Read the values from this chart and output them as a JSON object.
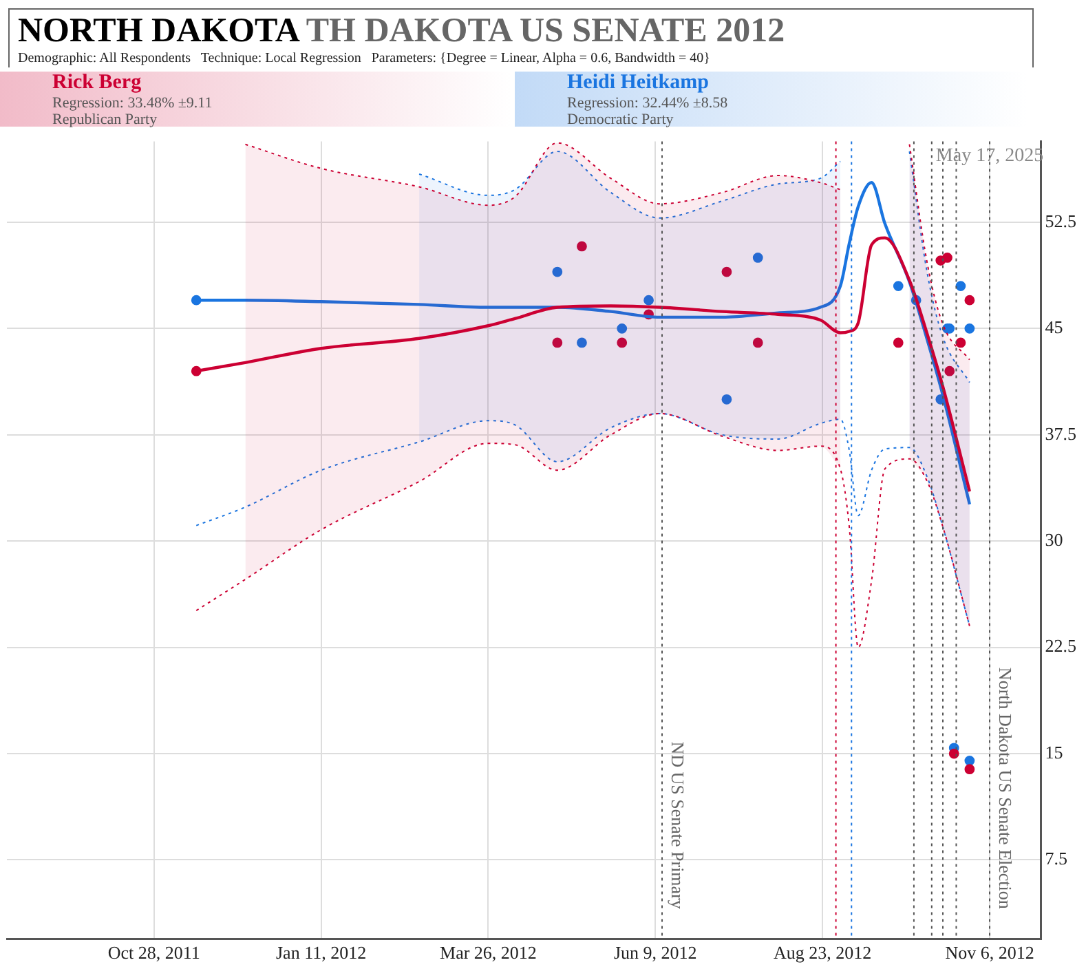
{
  "chart_data": {
    "type": "line",
    "title": "NORTH DAKOTA",
    "subtitle": "TH DAKOTA US SENATE 2012",
    "annotations": [
      "Demographic: All Respondents   Technique: Local Regression   Parameters: {Degree = Linear, Alpha = 0.6, Bandwidth = 40}",
      "Regression: 33.48% ±9.11",
      "Republican Party",
      "Regression: 32.44% ±8.58",
      "Democratic Party",
      {
        "text": "May 17, 2025",
        "x": "2012-11-06",
        "y": 57.2
      }
    ],
    "xlim": [
      "2011-08-23",
      "2012-11-29"
    ],
    "xticks": [
      {
        "value": "2011-10-28",
        "label": "Oct 28, 2011"
      },
      {
        "value": "2012-01-11",
        "label": "Jan 11, 2012"
      },
      {
        "value": "2012-03-26",
        "label": "Mar 26, 2012"
      },
      {
        "value": "2012-06-09",
        "label": "Jun 9, 2012"
      },
      {
        "value": "2012-08-23",
        "label": "Aug 23, 2012"
      },
      {
        "value": "2012-11-06",
        "label": "Nov 6, 2012"
      }
    ],
    "ylim": [
      1.9,
      58.2
    ],
    "yticks": [
      7.5,
      15,
      22.5,
      30,
      37.5,
      45,
      52.5
    ],
    "grid": true,
    "legend": "top",
    "series": [
      {
        "name": "Rick Berg",
        "color": "#cc0033",
        "x": [
          "2011-11-16",
          "2011-12-08",
          "2012-01-11",
          "2012-02-24",
          "2012-03-26",
          "2012-04-07",
          "2012-04-26",
          "2012-05-20",
          "2012-06-11",
          "2012-07-09",
          "2012-08-03",
          "2012-08-22",
          "2012-08-31",
          "2012-09-04",
          "2012-09-08",
          "2012-09-14",
          "2012-09-20",
          "2012-10-01",
          "2012-10-09",
          "2012-10-16",
          "2012-10-28"
        ],
        "values": [
          42.0,
          42.6,
          43.6,
          44.3,
          45.2,
          45.7,
          46.5,
          46.6,
          46.5,
          46.2,
          46.0,
          45.6,
          44.7,
          44.8,
          45.4,
          50.9,
          51.4,
          48.4,
          44.6,
          40.9,
          33.5
        ],
        "upper": [
          null,
          58.0,
          56.3,
          55.0,
          53.7,
          54.3,
          58.1,
          55.6,
          53.8,
          54.6,
          55.8,
          55.3,
          54.8,
          null,
          null,
          null,
          null,
          58.0,
          49.6,
          45.3,
          42.8
        ],
        "lower": [
          null,
          27.3,
          30.8,
          34.2,
          36.9,
          36.8,
          35.0,
          37.5,
          39.0,
          37.4,
          36.4,
          36.7,
          35.1,
          null,
          null,
          null,
          null,
          35.8,
          34.2,
          31.0,
          24.0
        ]
      },
      {
        "color": "#cc0033",
        "line_style": "dotted",
        "x": [
          "2011-12-08",
          "2012-01-11",
          "2012-02-24",
          "2012-03-26",
          "2012-04-07",
          "2012-04-26",
          "2012-05-20",
          "2012-06-11",
          "2012-07-09",
          "2012-08-03",
          "2012-08-22",
          "2012-08-31",
          "2012-09-04",
          "2012-09-08",
          "2012-09-14",
          "2012-09-20",
          "2012-10-01",
          "2012-10-09",
          "2012-10-16",
          "2012-10-28"
        ],
        "values": [
          58.0,
          56.3,
          55.0,
          53.7,
          54.3,
          58.1,
          55.6,
          53.8,
          54.6,
          55.8,
          55.3,
          54.8,
          null,
          null,
          null,
          null,
          58.0,
          49.6,
          45.3,
          42.8
        ]
      },
      {
        "color": "#cc0033",
        "line_style": "dotted",
        "x": [
          "2011-11-16",
          "2011-12-08",
          "2012-01-11",
          "2012-02-24",
          "2012-03-26",
          "2012-04-07",
          "2012-04-26",
          "2012-05-20",
          "2012-06-11",
          "2012-07-09",
          "2012-08-03",
          "2012-08-22",
          "2012-08-31",
          "2012-09-04",
          "2012-09-08",
          "2012-09-14",
          "2012-09-20",
          "2012-10-01",
          "2012-10-09",
          "2012-10-16",
          "2012-10-28"
        ],
        "values": [
          25.1,
          27.3,
          30.8,
          34.2,
          36.9,
          36.8,
          35.0,
          37.5,
          39.0,
          37.4,
          36.4,
          36.7,
          35.1,
          31.0,
          22.5,
          27.2,
          35.1,
          35.8,
          34.2,
          31.0,
          24.0
        ]
      },
      {
        "name": "Heidi Heitkamp",
        "color": "#1a75e0",
        "x": [
          "2011-11-16",
          "2011-12-08",
          "2012-01-11",
          "2012-02-24",
          "2012-03-26",
          "2012-04-07",
          "2012-04-26",
          "2012-05-20",
          "2012-06-11",
          "2012-07-09",
          "2012-08-03",
          "2012-08-22",
          "2012-08-31",
          "2012-09-04",
          "2012-09-08",
          "2012-09-14",
          "2012-09-20",
          "2012-10-01",
          "2012-10-09",
          "2012-10-16",
          "2012-10-28"
        ],
        "values": [
          47.0,
          47.0,
          46.9,
          46.7,
          46.5,
          46.5,
          46.5,
          46.2,
          45.8,
          45.8,
          46.1,
          46.5,
          48.0,
          51.0,
          53.6,
          55.3,
          52.4,
          48.3,
          44.2,
          40.3,
          32.6
        ],
        "upper": [
          null,
          null,
          null,
          55.9,
          54.4,
          54.8,
          57.5,
          54.6,
          52.8,
          54.0,
          55.2,
          55.6,
          56.8,
          null,
          null,
          null,
          null,
          57.5,
          48.9,
          44.4,
          41.2
        ],
        "lower": [
          null,
          null,
          null,
          37.0,
          38.5,
          38.2,
          35.6,
          38.0,
          39.0,
          37.5,
          37.2,
          38.3,
          38.6,
          null,
          null,
          null,
          null,
          36.6,
          34.5,
          31.0,
          24.0
        ]
      },
      {
        "color": "#1a75e0",
        "line_style": "dotted",
        "x": [
          "2012-02-24",
          "2012-03-26",
          "2012-04-07",
          "2012-04-26",
          "2012-05-20",
          "2012-06-11",
          "2012-07-09",
          "2012-08-03",
          "2012-08-22",
          "2012-08-31",
          "2012-09-04",
          "2012-09-08",
          "2012-09-14",
          "2012-09-20",
          "2012-10-01",
          "2012-10-09",
          "2012-10-16",
          "2012-10-28"
        ],
        "values": [
          55.9,
          54.4,
          54.8,
          57.5,
          54.6,
          52.8,
          54.0,
          55.2,
          55.6,
          56.8,
          null,
          null,
          null,
          null,
          57.5,
          48.9,
          44.4,
          41.2
        ]
      },
      {
        "color": "#1a75e0",
        "line_style": "dotted",
        "x": [
          "2011-11-16",
          "2011-12-08",
          "2012-01-11",
          "2012-02-24",
          "2012-03-26",
          "2012-04-07",
          "2012-04-26",
          "2012-05-20",
          "2012-06-11",
          "2012-07-09",
          "2012-08-03",
          "2012-08-22",
          "2012-08-31",
          "2012-09-04",
          "2012-09-08",
          "2012-09-14",
          "2012-09-20",
          "2012-10-01",
          "2012-10-09",
          "2012-10-16",
          "2012-10-28"
        ],
        "values": [
          31.1,
          32.4,
          35.0,
          37.0,
          38.5,
          38.2,
          35.6,
          38.0,
          39.0,
          37.5,
          37.2,
          38.3,
          38.6,
          36.4,
          31.8,
          35.0,
          36.5,
          36.6,
          34.5,
          31.0,
          24.0
        ]
      },
      {
        "type": "scatter",
        "marker": "circle",
        "color": "#cc0033",
        "x": [
          "2011-11-16",
          "2012-04-26",
          "2012-05-07",
          "2012-05-25",
          "2012-06-06",
          "2012-07-11",
          "2012-07-25",
          "2012-09-26",
          "2012-10-15",
          "2012-10-18",
          "2012-10-19",
          "2012-10-24",
          "2012-10-28",
          "2012-10-21",
          "2012-10-28"
        ],
        "values": [
          42.0,
          44.0,
          50.8,
          44.0,
          46.0,
          49.0,
          44.0,
          44.0,
          49.8,
          50.0,
          42.0,
          44.0,
          47.0,
          15.0,
          13.9
        ]
      },
      {
        "type": "scatter",
        "marker": "circle",
        "color": "#1a75e0",
        "x": [
          "2011-11-16",
          "2012-04-26",
          "2012-05-07",
          "2012-05-25",
          "2012-06-06",
          "2012-07-11",
          "2012-07-25",
          "2012-09-26",
          "2012-10-04",
          "2012-10-15",
          "2012-10-18",
          "2012-10-19",
          "2012-10-24",
          "2012-10-28",
          "2012-10-21",
          "2012-10-28"
        ],
        "values": [
          47.0,
          49.0,
          44.0,
          45.0,
          47.0,
          40.0,
          50.0,
          48.0,
          47.0,
          40.0,
          45.0,
          45.0,
          48.0,
          45.0,
          15.4,
          14.5
        ]
      }
    ],
    "ref_lines": [
      {
        "axis": "x",
        "value": "2012-06-12",
        "label": "ND US Senate Primary",
        "color": "#555555",
        "line_style": "dotted"
      },
      {
        "axis": "x",
        "value": "2012-08-29",
        "color": "#cc0033",
        "line_style": "dotted"
      },
      {
        "axis": "x",
        "value": "2012-09-05",
        "color": "#1a75e0",
        "line_style": "dotted"
      },
      {
        "axis": "x",
        "value": "2012-10-03",
        "color": "#555555",
        "line_style": "dotted"
      },
      {
        "axis": "x",
        "value": "2012-10-11",
        "color": "#555555",
        "line_style": "dotted"
      },
      {
        "axis": "x",
        "value": "2012-10-16",
        "color": "#555555",
        "line_style": "dotted"
      },
      {
        "axis": "x",
        "value": "2012-10-22",
        "color": "#555555",
        "line_style": "dotted"
      },
      {
        "axis": "x",
        "value": "2012-11-06",
        "label": "North Dakota US Senate Election",
        "color": "#555555",
        "line_style": "dotted"
      }
    ]
  }
}
